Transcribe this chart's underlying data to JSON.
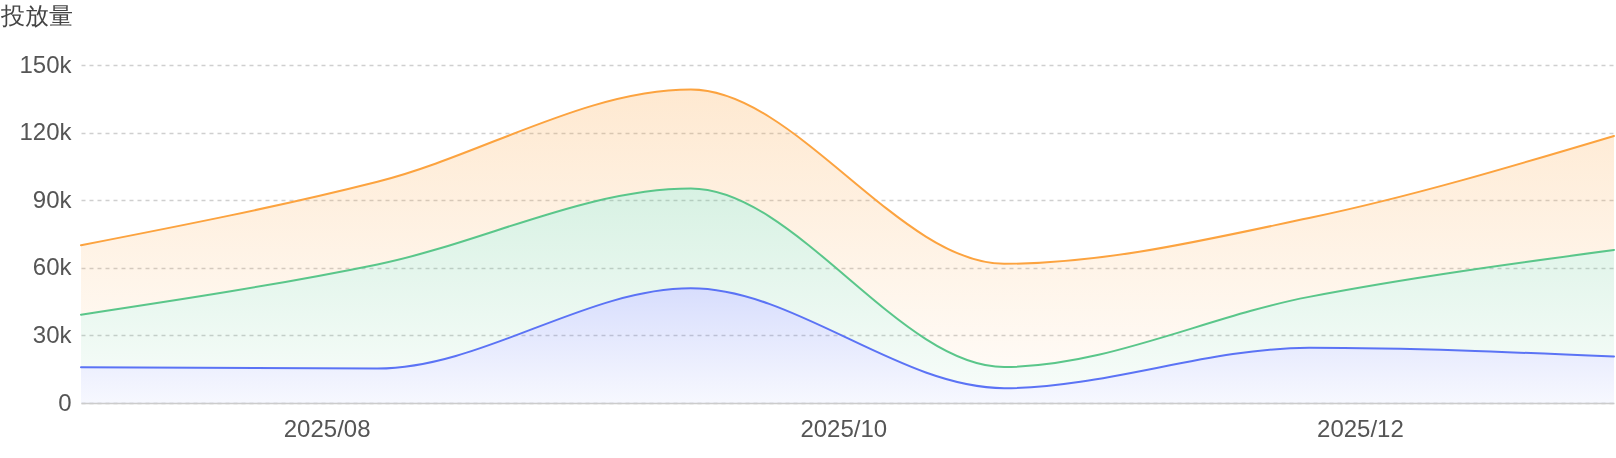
{
  "chart_data": {
    "type": "area",
    "ylabel": "投放量",
    "stacked": true,
    "grid": "y",
    "x": [
      "2025-07-03",
      "2025-08-07",
      "2025-09-13",
      "2025-10-20",
      "2025-11-25",
      "2025-12-31"
    ],
    "series": [
      {
        "color": "#5b73f5",
        "values": [
          15900,
          15300,
          50900,
          6600,
          24500,
          20600
        ]
      },
      {
        "color": "#5ac68a",
        "values": [
          23300,
          46200,
          44300,
          9400,
          22600,
          47300
        ]
      },
      {
        "color": "#fca33f",
        "values": [
          30800,
          36700,
          43900,
          45800,
          35000,
          50600
        ]
      }
    ],
    "xlim": [
      "2025-07-03",
      "2025-12-31"
    ],
    "xticks": [
      {
        "value": "2025-08",
        "label": "2025/08"
      },
      {
        "value": "2025-10",
        "label": "2025/10"
      },
      {
        "value": "2025-12",
        "label": "2025/12"
      }
    ],
    "ylim": [
      0,
      150000
    ],
    "yticks": [
      0,
      {
        "value": 30000,
        "label": "30k"
      },
      {
        "value": 60000,
        "label": "60k"
      },
      {
        "value": 90000,
        "label": "90k"
      },
      {
        "value": 120000,
        "label": "120k"
      },
      {
        "value": 150000,
        "label": "150k"
      }
    ]
  }
}
